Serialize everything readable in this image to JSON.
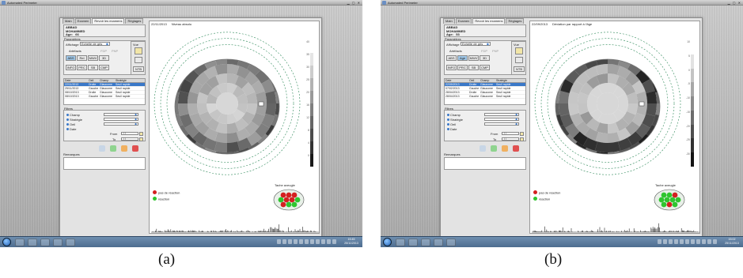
{
  "window": {
    "title": "Automated Perimeter"
  },
  "tabs": [
    {
      "label": "Main"
    },
    {
      "label": "Examen"
    },
    {
      "label": "Revoir les examens"
    },
    {
      "label": "Réglages"
    }
  ],
  "panels": [
    {
      "caption": "(a)",
      "patient": {
        "last_name": "ABBAD",
        "first_name": "MOHAMMED",
        "age_label": "Age:",
        "age": "66"
      },
      "header_date": "22/11/2013",
      "header_label": "Niveau absolu",
      "parameters": {
        "title": "Paramètres",
        "display_label": "Affichage",
        "display_value": "Echelle de gris",
        "artefacts_label": "Artéfacts",
        "artefact_options": [
          "FDP",
          "PNP"
        ],
        "mode_buttons": [
          "ABS",
          "Rel",
          "MWV",
          "3D"
        ],
        "mode_buttons_2": [
          "INFO",
          "PRC",
          "SB",
          "CMP"
        ],
        "active_mode": "ABS",
        "view_label": "Vue",
        "view_button": "NTB"
      },
      "exams": {
        "headers": [
          "Date",
          "Oeil",
          "Champ",
          "Stratégie"
        ],
        "rows": [
          [
            "22/11/2013",
            "Droite",
            "Glaucome",
            "Seuil rapide"
          ],
          [
            "25/11/2013",
            "Gauche",
            "Glaucome",
            "Seuil rapide"
          ],
          [
            "08/10/2013",
            "Droite",
            "Glaucome",
            "Seuil rapide"
          ],
          [
            "08/10/2013",
            "Gauche",
            "Glaucome",
            "Seuil rapide"
          ]
        ],
        "selected": 0
      },
      "filters": {
        "title": "Filtres",
        "items": [
          "Champ",
          "Stratégie",
          "Oeil",
          "Date"
        ],
        "from_label": "From",
        "to_label": "To",
        "date_placeholder": "/ /"
      },
      "remarks_label": "Remarques",
      "legend": [
        {
          "label": "pas de réaction",
          "color": "#d42020"
        },
        {
          "label": "réaction",
          "color": "#2fc52f"
        }
      ],
      "blind_spot_label": "Tache aveugle",
      "scale": {
        "labels": [
          "40",
          "35",
          "30",
          "25",
          "20",
          "16",
          "12",
          "8",
          "4",
          "0"
        ],
        "style": "dark"
      },
      "field_shade": "light",
      "blind_spot_colors": [
        "#d42020",
        "#d42020",
        "#d42020",
        "#2fc52f",
        "#d42020",
        "#d42020",
        "#2fc52f",
        "#d42020",
        "#2fc52f",
        "#2fc52f"
      ],
      "clock": {
        "time": "15:45",
        "date": "25/11/2013"
      }
    },
    {
      "caption": "(b)",
      "patient": {
        "last_name": "ABBAD",
        "first_name": "MOHAMMED",
        "age_label": "Age:",
        "age": "53"
      },
      "header_date": "22/09/2013",
      "header_label": "Déviation par rapport à l'âge",
      "parameters": {
        "title": "Paramètres",
        "display_label": "Affichage",
        "display_value": "Echelle de gris",
        "artefacts_label": "Artéfacts",
        "artefact_options": [
          "FDP",
          "PNP"
        ],
        "mode_buttons": [
          "ABS",
          "Age",
          "MWV",
          "3D"
        ],
        "mode_buttons_2": [
          "INFO",
          "PRC",
          "SB",
          "CMP"
        ],
        "active_mode": "Age",
        "view_label": "Vue",
        "view_button": "NTB"
      },
      "exams": {
        "headers": [
          "Date",
          "Oeil",
          "Champ",
          "Stratégie"
        ],
        "rows": [
          [
            "22/09/2013",
            "Droite",
            "Glaucome",
            "Seuil rapide"
          ],
          [
            "07/02/2013",
            "Gauche",
            "Glaucome",
            "Seuil rapide"
          ],
          [
            "28/04/2013",
            "Droite",
            "Glaucome",
            "Seuil rapide"
          ],
          [
            "28/04/2013",
            "Gauche",
            "Glaucome",
            "Seuil rapide"
          ]
        ],
        "selected": 0
      },
      "filters": {
        "title": "Filtres",
        "items": [
          "Champ",
          "Stratégie",
          "Oeil",
          "Date"
        ],
        "from_label": "From",
        "to_label": "To",
        "date_placeholder": "/ /"
      },
      "remarks_label": "Remarques",
      "legend": [
        {
          "label": "pas de réaction",
          "color": "#d42020"
        },
        {
          "label": "réaction",
          "color": "#2fc52f"
        }
      ],
      "blind_spot_label": "Tache aveugle",
      "scale": {
        "labels": [
          "10",
          "5",
          "0",
          "-5",
          "-10",
          "-15",
          "-20",
          "-25",
          "-30"
        ],
        "style": "deviation"
      },
      "field_shade": "dark",
      "blind_spot_colors": [
        "#2fc52f",
        "#2fc52f",
        "#d42020",
        "#2fc52f",
        "#2fc52f",
        "#2fc52f",
        "#2fc52f",
        "#2fc52f",
        "#d42020",
        "#2fc52f"
      ],
      "clock": {
        "time": "15:02",
        "date": "25/11/2013"
      }
    }
  ]
}
